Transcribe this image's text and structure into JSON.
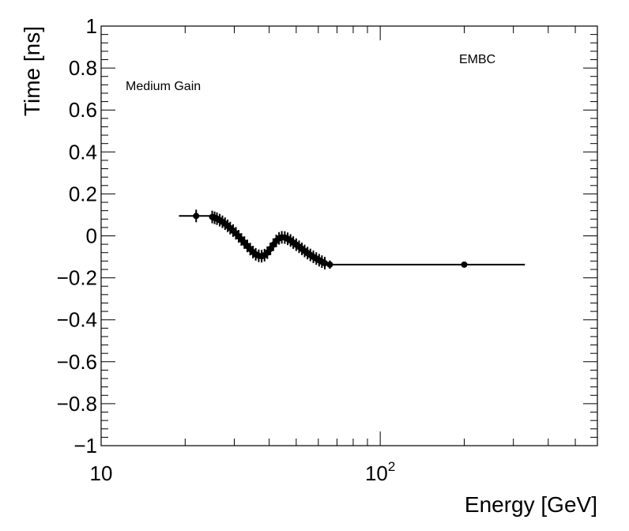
{
  "chart_data": {
    "type": "scatter",
    "title": "",
    "xlabel": "Energy [GeV]",
    "ylabel": "Time [ns]",
    "xscale": "log",
    "xlim": [
      10,
      600
    ],
    "ylim": [
      -1,
      1
    ],
    "grid": false,
    "annotations": [
      "Medium Gain",
      "EMBC"
    ],
    "x_tick_labels": [
      {
        "value": 10,
        "base": "10",
        "exp": ""
      },
      {
        "value": 100,
        "base": "10",
        "exp": "2"
      }
    ],
    "y_tick_labels": [
      {
        "value": 1,
        "text": "1"
      },
      {
        "value": 0.8,
        "text": "0.8"
      },
      {
        "value": 0.6,
        "text": "0.6"
      },
      {
        "value": 0.4,
        "text": "0.4"
      },
      {
        "value": 0.2,
        "text": "0.2"
      },
      {
        "value": 0,
        "text": "0"
      },
      {
        "value": -0.2,
        "text": "−0.2"
      },
      {
        "value": -0.4,
        "text": "−0.4"
      },
      {
        "value": -0.6,
        "text": "−0.6"
      },
      {
        "value": -0.8,
        "text": "−0.8"
      },
      {
        "value": -1,
        "text": "−1"
      }
    ],
    "series": [
      {
        "name": "Medium Gain",
        "points": [
          {
            "x": 21.9,
            "y": 0.095,
            "yerr": 0.03,
            "xlo": 19.0,
            "xhi": 25.0
          },
          {
            "x": 25.0,
            "y": 0.09,
            "yerr": 0.03
          },
          {
            "x": 25.5,
            "y": 0.086,
            "yerr": 0.03
          },
          {
            "x": 26.0,
            "y": 0.082,
            "yerr": 0.03
          },
          {
            "x": 26.6,
            "y": 0.075,
            "yerr": 0.03
          },
          {
            "x": 27.2,
            "y": 0.067,
            "yerr": 0.03
          },
          {
            "x": 27.8,
            "y": 0.058,
            "yerr": 0.03
          },
          {
            "x": 28.4,
            "y": 0.048,
            "yerr": 0.03
          },
          {
            "x": 29.0,
            "y": 0.037,
            "yerr": 0.03
          },
          {
            "x": 29.7,
            "y": 0.025,
            "yerr": 0.03
          },
          {
            "x": 30.4,
            "y": 0.012,
            "yerr": 0.03
          },
          {
            "x": 31.1,
            "y": -0.002,
            "yerr": 0.03
          },
          {
            "x": 31.8,
            "y": -0.017,
            "yerr": 0.03
          },
          {
            "x": 32.6,
            "y": -0.032,
            "yerr": 0.03
          },
          {
            "x": 33.4,
            "y": -0.048,
            "yerr": 0.03
          },
          {
            "x": 34.2,
            "y": -0.063,
            "yerr": 0.03
          },
          {
            "x": 35.0,
            "y": -0.077,
            "yerr": 0.03
          },
          {
            "x": 35.8,
            "y": -0.088,
            "yerr": 0.03
          },
          {
            "x": 36.7,
            "y": -0.095,
            "yerr": 0.03
          },
          {
            "x": 37.6,
            "y": -0.097,
            "yerr": 0.03
          },
          {
            "x": 38.5,
            "y": -0.092,
            "yerr": 0.03
          },
          {
            "x": 39.4,
            "y": -0.08,
            "yerr": 0.03
          },
          {
            "x": 40.4,
            "y": -0.062,
            "yerr": 0.03
          },
          {
            "x": 41.4,
            "y": -0.042,
            "yerr": 0.03
          },
          {
            "x": 42.4,
            "y": -0.024,
            "yerr": 0.03
          },
          {
            "x": 43.4,
            "y": -0.012,
            "yerr": 0.03
          },
          {
            "x": 44.4,
            "y": -0.007,
            "yerr": 0.03
          },
          {
            "x": 45.5,
            "y": -0.008,
            "yerr": 0.03
          },
          {
            "x": 46.6,
            "y": -0.014,
            "yerr": 0.03
          },
          {
            "x": 47.7,
            "y": -0.022,
            "yerr": 0.03
          },
          {
            "x": 48.8,
            "y": -0.032,
            "yerr": 0.03
          },
          {
            "x": 50.0,
            "y": -0.042,
            "yerr": 0.03
          },
          {
            "x": 51.2,
            "y": -0.052,
            "yerr": 0.03
          },
          {
            "x": 52.4,
            "y": -0.062,
            "yerr": 0.03
          },
          {
            "x": 53.6,
            "y": -0.072,
            "yerr": 0.03
          },
          {
            "x": 54.9,
            "y": -0.082,
            "yerr": 0.03
          },
          {
            "x": 56.2,
            "y": -0.091,
            "yerr": 0.03
          },
          {
            "x": 57.6,
            "y": -0.1,
            "yerr": 0.03
          },
          {
            "x": 59.0,
            "y": -0.108,
            "yerr": 0.03
          },
          {
            "x": 60.4,
            "y": -0.116,
            "yerr": 0.03
          },
          {
            "x": 61.8,
            "y": -0.123,
            "yerr": 0.03
          },
          {
            "x": 63.3,
            "y": -0.13,
            "yerr": 0.03
          },
          {
            "x": 66.0,
            "y": -0.137,
            "yerr": 0.02
          },
          {
            "x": 200.0,
            "y": -0.137,
            "yerr": 0.005,
            "xlo": 66.0,
            "xhi": 330.0
          }
        ]
      }
    ]
  }
}
